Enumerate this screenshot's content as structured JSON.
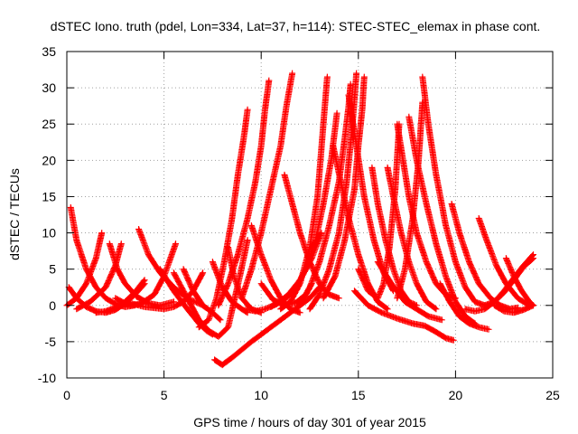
{
  "chart_data": {
    "type": "scatter",
    "title": "dSTEC Iono. truth (pdel, Lon=334, Lat=37, h=114): STEC-STEC_elemax in phase cont.",
    "xlabel": "GPS time / hours of day 301 of year 2015",
    "ylabel": "dSTEC  / TECUs",
    "xlim": [
      0,
      25
    ],
    "ylim": [
      -10,
      35
    ],
    "xticks": [
      "0",
      "5",
      "10",
      "15",
      "20",
      "25"
    ],
    "yticks": [
      "-10",
      "-5",
      "0",
      "5",
      "10",
      "15",
      "20",
      "25",
      "30",
      "35"
    ],
    "grid": true,
    "legend": "none",
    "marker": "plus",
    "color": "#ff0000",
    "series": [
      {
        "x": [
          0.1,
          0.5,
          1.0,
          1.5,
          2.0,
          2.5,
          3.0,
          3.5,
          4.0
        ],
        "y": [
          2.5,
          1.0,
          -0.2,
          -0.8,
          -1.0,
          -0.6,
          0.3,
          1.5,
          3.0
        ]
      },
      {
        "x": [
          0.2,
          0.5,
          1.0,
          1.5,
          2.0,
          2.5,
          3.0,
          3.5
        ],
        "y": [
          13.5,
          9.0,
          5.0,
          2.5,
          1.0,
          0.2,
          -0.2,
          0.0
        ]
      },
      {
        "x": [
          0.0,
          0.5,
          1.0,
          1.5,
          1.8
        ],
        "y": [
          0.0,
          1.0,
          3.0,
          6.5,
          10.0
        ]
      },
      {
        "x": [
          2.2,
          2.6,
          3.0,
          3.6,
          4.2,
          4.8,
          5.5
        ],
        "y": [
          8.5,
          5.0,
          3.0,
          1.2,
          0.3,
          0.0,
          0.5
        ]
      },
      {
        "x": [
          0.5,
          1.2,
          2.0,
          2.5,
          2.8
        ],
        "y": [
          -0.5,
          0.5,
          2.5,
          5.5,
          8.5
        ]
      },
      {
        "x": [
          1.5,
          2.0,
          2.5,
          3.0,
          3.5,
          4.0
        ],
        "y": [
          -1.0,
          -0.8,
          -0.3,
          0.5,
          1.8,
          3.5
        ]
      },
      {
        "x": [
          3.7,
          4.2,
          4.8,
          5.5,
          6.2,
          7.0
        ],
        "y": [
          10.5,
          7.0,
          4.5,
          2.5,
          1.0,
          0.0
        ]
      },
      {
        "x": [
          2.5,
          3.2,
          3.8,
          4.5,
          5.0,
          5.6
        ],
        "y": [
          1.0,
          0.0,
          0.2,
          1.5,
          4.0,
          8.5
        ]
      },
      {
        "x": [
          3.0,
          4.0,
          5.0,
          5.5,
          6.0,
          6.5,
          7.0
        ],
        "y": [
          0.5,
          -0.2,
          -0.5,
          -0.2,
          0.5,
          2.0,
          4.5
        ]
      },
      {
        "x": [
          4.8,
          5.5,
          6.2,
          6.8,
          7.2,
          7.5
        ],
        "y": [
          5.0,
          2.0,
          -0.5,
          -2.5,
          -3.5,
          -4.0
        ]
      },
      {
        "x": [
          6.0,
          6.5,
          7.0,
          7.5,
          7.9
        ],
        "y": [
          5.0,
          2.0,
          0.0,
          -1.0,
          -2.0
        ]
      },
      {
        "x": [
          5.5,
          6.2,
          6.8,
          7.3,
          7.8,
          8.3,
          8.9,
          9.3
        ],
        "y": [
          4.5,
          1.0,
          -2.0,
          -3.5,
          -4.3,
          -3.0,
          4.0,
          9.0
        ]
      },
      {
        "x": [
          6.8,
          7.3,
          7.7,
          8.1,
          8.5,
          8.8,
          9.1,
          9.3
        ],
        "y": [
          -3.0,
          -2.0,
          1.0,
          6.0,
          12.0,
          18.0,
          23.0,
          27.0
        ]
      },
      {
        "x": [
          7.6,
          8.0,
          8.6,
          9.5,
          10.5,
          11.5,
          12.5,
          13.0
        ],
        "y": [
          -7.5,
          -8.2,
          -7.0,
          -5.0,
          -3.0,
          -1.0,
          1.0,
          2.5
        ]
      },
      {
        "x": [
          7.5,
          8.0,
          8.5,
          9.0,
          9.3
        ],
        "y": [
          6.0,
          2.5,
          0.5,
          -0.5,
          -1.0
        ]
      },
      {
        "x": [
          7.8,
          8.3,
          8.8,
          9.3,
          9.7,
          10.0,
          10.2,
          10.4
        ],
        "y": [
          0.0,
          3.0,
          7.0,
          12.0,
          17.0,
          22.0,
          27.0,
          31.0
        ]
      },
      {
        "x": [
          8.3,
          8.6,
          9.0,
          9.5,
          10.0
        ],
        "y": [
          8.0,
          4.0,
          1.0,
          -0.5,
          -1.0
        ]
      },
      {
        "x": [
          9.0,
          9.5,
          10.0,
          10.5,
          11.0,
          11.3,
          11.6
        ],
        "y": [
          1.0,
          5.0,
          10.0,
          16.0,
          22.0,
          27.5,
          32.0
        ]
      },
      {
        "x": [
          9.5,
          10.0,
          10.5,
          11.0,
          11.5,
          12.0
        ],
        "y": [
          11.0,
          7.0,
          3.5,
          1.0,
          -0.5,
          -1.0
        ]
      },
      {
        "x": [
          10.0,
          10.6,
          11.2,
          11.8,
          12.3,
          12.6
        ],
        "y": [
          3.0,
          0.8,
          0.0,
          0.4,
          1.5,
          3.0
        ]
      },
      {
        "x": [
          9.2,
          9.7,
          10.2,
          10.8,
          11.4,
          12.0,
          12.6,
          13.1
        ],
        "y": [
          -0.5,
          -0.8,
          -0.5,
          0.2,
          1.5,
          3.5,
          6.5,
          10.0
        ]
      },
      {
        "x": [
          11.2,
          11.6,
          12.0,
          12.5,
          13.0,
          13.5,
          14.0
        ],
        "y": [
          18.0,
          14.0,
          10.0,
          6.0,
          3.0,
          1.5,
          1.0
        ]
      },
      {
        "x": [
          11.0,
          11.5,
          12.0,
          12.5,
          12.9,
          13.2,
          13.4
        ],
        "y": [
          -0.5,
          0.5,
          3.0,
          8.0,
          15.0,
          25.0,
          31.5
        ]
      },
      {
        "x": [
          10.5,
          11.2,
          11.8,
          12.3,
          12.8,
          13.2,
          13.6,
          13.9
        ],
        "y": [
          -0.2,
          0.8,
          2.5,
          5.0,
          9.0,
          14.0,
          20.0,
          26.5
        ]
      },
      {
        "x": [
          12.0,
          12.5,
          13.0,
          13.5,
          14.0,
          14.3,
          14.5,
          14.6
        ],
        "y": [
          0.0,
          2.5,
          6.0,
          11.0,
          17.0,
          23.0,
          27.5,
          30.5
        ]
      },
      {
        "x": [
          12.5,
          13.0,
          13.5,
          14.0,
          14.4,
          14.7,
          14.9
        ],
        "y": [
          -0.5,
          1.5,
          5.0,
          10.0,
          17.0,
          25.0,
          32.0
        ]
      },
      {
        "x": [
          13.2,
          13.8,
          14.3,
          14.8,
          15.0,
          15.2,
          15.3
        ],
        "y": [
          1.0,
          4.0,
          9.0,
          16.0,
          22.0,
          27.0,
          31.5
        ]
      },
      {
        "x": [
          14.5,
          14.9,
          15.3,
          15.8,
          16.3,
          16.8
        ],
        "y": [
          29.0,
          22.0,
          15.0,
          9.0,
          4.5,
          2.0
        ]
      },
      {
        "x": [
          13.7,
          14.1,
          14.5,
          15.0,
          15.5,
          16.0,
          16.5
        ],
        "y": [
          22.0,
          17.0,
          12.0,
          7.0,
          3.0,
          0.5,
          -0.5
        ]
      },
      {
        "x": [
          15.0,
          15.5,
          16.0,
          16.3,
          16.6,
          16.9,
          17.1
        ],
        "y": [
          5.0,
          2.0,
          1.0,
          3.0,
          8.0,
          16.0,
          25.0
        ]
      },
      {
        "x": [
          15.7,
          16.0,
          16.4,
          16.8,
          17.2,
          17.6,
          18.0
        ],
        "y": [
          19.0,
          14.0,
          9.0,
          5.0,
          2.0,
          0.5,
          0.0
        ]
      },
      {
        "x": [
          16.5,
          16.8,
          17.2,
          17.6,
          18.0,
          18.5,
          19.0
        ],
        "y": [
          19.0,
          15.0,
          10.0,
          6.0,
          3.0,
          0.5,
          -0.5
        ]
      },
      {
        "x": [
          17.0,
          17.3,
          17.6,
          18.0,
          18.5,
          19.0,
          19.5,
          20.0
        ],
        "y": [
          25.0,
          20.0,
          15.0,
          10.0,
          6.0,
          3.0,
          1.5,
          1.0
        ]
      },
      {
        "x": [
          17.0,
          17.4,
          17.8,
          18.1,
          18.3
        ],
        "y": [
          1.0,
          5.0,
          12.0,
          20.0,
          28.0
        ]
      },
      {
        "x": [
          18.3,
          18.6,
          19.0,
          19.5,
          20.0,
          20.5,
          21.0,
          21.5
        ],
        "y": [
          31.5,
          25.0,
          18.0,
          11.0,
          6.0,
          2.5,
          0.5,
          0.0
        ]
      },
      {
        "x": [
          17.6,
          18.0,
          18.5,
          19.0,
          19.5,
          20.0,
          20.5,
          21.0
        ],
        "y": [
          26.0,
          20.0,
          14.0,
          8.5,
          4.0,
          0.5,
          -1.5,
          -2.5
        ]
      },
      {
        "x": [
          14.8,
          15.5,
          16.2,
          17.0,
          17.8,
          18.4,
          18.9,
          19.5,
          19.9
        ],
        "y": [
          2.0,
          0.0,
          -1.0,
          -1.8,
          -2.5,
          -2.8,
          -3.5,
          -4.5,
          -4.8
        ]
      },
      {
        "x": [
          16.0,
          16.7,
          17.4,
          18.0,
          18.6,
          19.3
        ],
        "y": [
          6.0,
          3.0,
          0.5,
          -0.5,
          -1.5,
          -2.0
        ]
      },
      {
        "x": [
          19.2,
          19.7,
          20.2,
          20.7,
          21.2,
          21.7
        ],
        "y": [
          3.0,
          0.5,
          -1.5,
          -2.5,
          -3.0,
          -3.3
        ]
      },
      {
        "x": [
          19.8,
          20.2,
          20.7,
          21.2,
          21.8,
          22.3,
          22.8,
          23.2
        ],
        "y": [
          14.0,
          10.0,
          6.0,
          3.0,
          1.0,
          0.0,
          -0.5,
          -0.3
        ]
      },
      {
        "x": [
          21.2,
          21.6,
          22.1,
          22.6,
          23.2,
          23.8
        ],
        "y": [
          12.0,
          9.0,
          5.5,
          3.0,
          1.0,
          0.0
        ]
      },
      {
        "x": [
          20.5,
          21.0,
          21.5,
          22.0,
          22.5,
          23.0,
          23.5,
          24.0
        ],
        "y": [
          -0.5,
          -0.8,
          -0.5,
          0.5,
          2.0,
          3.8,
          5.5,
          7.0
        ]
      },
      {
        "x": [
          21.5,
          22.0,
          22.5,
          23.0,
          23.5,
          24.0
        ],
        "y": [
          0.0,
          0.5,
          1.8,
          3.5,
          5.3,
          6.5
        ]
      },
      {
        "x": [
          22.6,
          23.0,
          23.4,
          23.8,
          24.0
        ],
        "y": [
          6.5,
          4.0,
          2.0,
          0.5,
          0.0
        ]
      },
      {
        "x": [
          22.0,
          22.5,
          23.0,
          23.5,
          24.0
        ],
        "y": [
          0.0,
          -0.8,
          -1.0,
          -0.6,
          0.0
        ]
      }
    ]
  }
}
